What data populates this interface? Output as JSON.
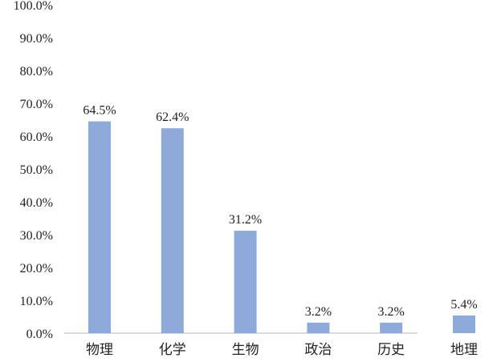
{
  "chart_data": {
    "type": "bar",
    "categories": [
      "物理",
      "化学",
      "生物",
      "政治",
      "历史",
      "地理"
    ],
    "values": [
      64.5,
      62.4,
      31.2,
      3.2,
      3.2,
      5.4
    ],
    "data_labels": [
      "64.5%",
      "62.4%",
      "31.2%",
      "3.2%",
      "3.2%",
      "5.4%"
    ],
    "ylim": [
      0,
      100
    ],
    "yticks": [
      "0.0%",
      "10.0%",
      "20.0%",
      "30.0%",
      "40.0%",
      "50.0%",
      "60.0%",
      "70.0%",
      "80.0%",
      "90.0%",
      "100.0%"
    ],
    "title": "",
    "xlabel": "",
    "ylabel": "",
    "grid": false,
    "bar_color": "#8eaadb"
  }
}
